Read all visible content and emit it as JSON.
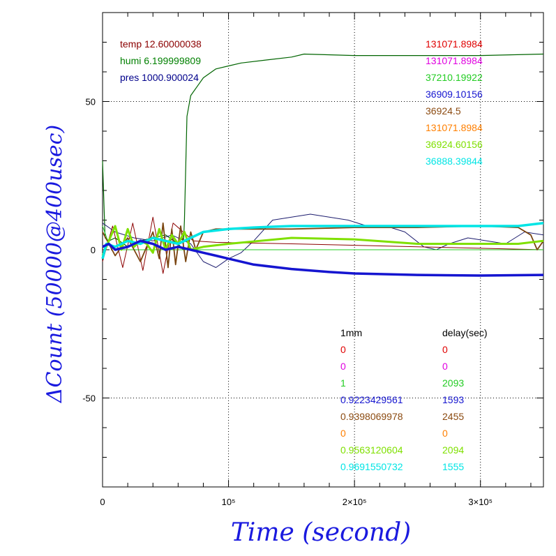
{
  "chart_data": {
    "type": "line",
    "xlabel": "Time (second)",
    "ylabel": "ΔCount (50000@400usec)",
    "xlim": [
      0,
      350000
    ],
    "ylim": [
      -80,
      80
    ],
    "grid": true,
    "x_ticks": [
      {
        "value": 0,
        "label": "0"
      },
      {
        "value": 100000,
        "label": "10⁵"
      },
      {
        "value": 200000,
        "label": "2×10⁵"
      },
      {
        "value": 300000,
        "label": "3×10⁵"
      }
    ],
    "y_ticks": [
      {
        "value": 50,
        "label": "50"
      },
      {
        "value": 0,
        "label": "0"
      },
      {
        "value": -50,
        "label": "-50"
      }
    ],
    "env_labels": [
      {
        "text": "temp 12.60000038",
        "color": "#8b0000"
      },
      {
        "text": "humi 6.199999809",
        "color": "#008000"
      },
      {
        "text": "pres 1000.900024",
        "color": "#00008b"
      }
    ],
    "right_values": [
      {
        "text": "131071.8984",
        "color": "#e00000"
      },
      {
        "text": "131071.8984",
        "color": "#e000e0"
      },
      {
        "text": "37210.19922",
        "color": "#22cc22"
      },
      {
        "text": "36909.10156",
        "color": "#1515d0"
      },
      {
        "text": "36924.5",
        "color": "#8b4a10"
      },
      {
        "text": "131071.8984",
        "color": "#ff7f00"
      },
      {
        "text": "36924.60156",
        "color": "#7fe000"
      },
      {
        "text": "36888.39844",
        "color": "#00e5e5"
      }
    ],
    "bottom_table": {
      "headers": [
        "1mm",
        "delay(sec)"
      ],
      "rows": [
        {
          "a": "0",
          "b": "0",
          "color": "#e00000"
        },
        {
          "a": "0",
          "b": "0",
          "color": "#e000e0"
        },
        {
          "a": "1",
          "b": "2093",
          "color": "#22cc22"
        },
        {
          "a": "0.9223429561",
          "b": "1593",
          "color": "#1515d0"
        },
        {
          "a": "0.9398069978",
          "b": "2455",
          "color": "#8b4a10"
        },
        {
          "a": "0",
          "b": "0",
          "color": "#ff7f00"
        },
        {
          "a": "0.9563120604",
          "b": "2094",
          "color": "#7fe000"
        },
        {
          "a": "0.9691550732",
          "b": "1555",
          "color": "#00e5e5"
        }
      ]
    },
    "series": [
      {
        "color": "#006400",
        "width": 1.2,
        "x": [
          0,
          2000,
          5000,
          10000,
          20000,
          30000,
          40000,
          50000,
          60000,
          64000,
          65000,
          67000,
          70000,
          75000,
          80000,
          90000,
          100000,
          110000,
          130000,
          150000,
          160000,
          200000,
          250000,
          300000,
          350000
        ],
        "y": [
          30,
          4,
          3,
          4,
          1,
          3,
          4,
          5,
          2,
          0,
          10,
          45,
          52,
          55,
          58,
          61,
          62,
          63,
          64,
          65,
          66,
          65.5,
          65.5,
          65.5,
          66
        ]
      },
      {
        "color": "#1c1c6e",
        "width": 1,
        "x": [
          0,
          10000,
          25000,
          40000,
          55000,
          70000,
          80000,
          90000,
          100000,
          110000,
          120000,
          135000,
          150000,
          165000,
          180000,
          195000,
          210000,
          225000,
          240000,
          255000,
          265000,
          275000,
          290000,
          305000,
          320000,
          335000,
          350000
        ],
        "y": [
          9,
          6,
          4,
          3,
          5,
          2,
          -4,
          -6,
          -3,
          -1,
          3,
          10,
          11,
          12,
          11,
          10,
          8,
          8,
          6,
          1,
          0,
          2,
          4,
          3,
          2,
          6,
          5
        ]
      },
      {
        "color": "#8b0000",
        "width": 1,
        "x": [
          0,
          8000,
          16000,
          24000,
          32000,
          40000,
          48000,
          56000,
          64000,
          72000,
          90000,
          150000,
          250000,
          350000
        ],
        "y": [
          -4,
          8,
          -6,
          9,
          -7,
          11,
          -8,
          9,
          6,
          3,
          2.5,
          2,
          1,
          0
        ]
      },
      {
        "color": "#22cc22",
        "width": 1,
        "x": [
          0,
          5000,
          10000,
          60000,
          70000,
          100000,
          200000,
          350000
        ],
        "y": [
          8,
          2,
          0,
          0,
          0,
          0,
          0,
          0
        ]
      },
      {
        "color": "#7a4510",
        "width": 1.8,
        "x": [
          0,
          10000,
          20000,
          30000,
          40000,
          45000,
          48000,
          52000,
          55000,
          58000,
          62000,
          66000,
          70000,
          74000,
          80000,
          90000,
          100000,
          120000,
          150000,
          200000,
          250000,
          300000,
          330000,
          340000,
          345000,
          350000
        ],
        "y": [
          6,
          -2,
          4,
          -4,
          6,
          -3,
          9,
          -6,
          7,
          -5,
          8,
          -4,
          6,
          0,
          6,
          7,
          7,
          7,
          7,
          7.5,
          7.5,
          8,
          7.5,
          5,
          0,
          3
        ]
      },
      {
        "color": "#7fe000",
        "width": 3,
        "x": [
          0,
          5000,
          10000,
          15000,
          20000,
          25000,
          30000,
          35000,
          40000,
          45000,
          50000,
          55000,
          60000,
          65000,
          70000,
          80000,
          100000,
          150000,
          200000,
          250000,
          300000,
          330000,
          350000
        ],
        "y": [
          -2,
          3,
          8,
          0,
          7,
          1,
          3,
          2,
          -1,
          7,
          0,
          5,
          2,
          6,
          0,
          1,
          2,
          4,
          3.5,
          2,
          2,
          2,
          3
        ]
      },
      {
        "color": "#00e5e5",
        "width": 3.5,
        "x": [
          0,
          3000,
          10000,
          20000,
          30000,
          40000,
          50000,
          60000,
          70000,
          80000,
          100000,
          120000,
          150000,
          200000,
          250000,
          300000,
          330000,
          350000
        ],
        "y": [
          -3,
          2,
          1,
          3,
          2,
          4,
          3,
          2,
          4,
          6,
          7,
          7.5,
          8,
          8,
          8,
          8,
          8,
          9
        ]
      },
      {
        "color": "#1515d0",
        "width": 3.5,
        "x": [
          0,
          5000,
          10000,
          20000,
          30000,
          40000,
          50000,
          60000,
          70000,
          80000,
          90000,
          100000,
          120000,
          150000,
          180000,
          200000,
          250000,
          300000,
          350000
        ],
        "y": [
          1,
          2,
          0,
          1,
          3,
          2,
          0,
          1,
          0,
          -1,
          -2,
          -3,
          -5,
          -6.5,
          -7.5,
          -8,
          -8.5,
          -8.7,
          -8.5
        ]
      }
    ]
  }
}
